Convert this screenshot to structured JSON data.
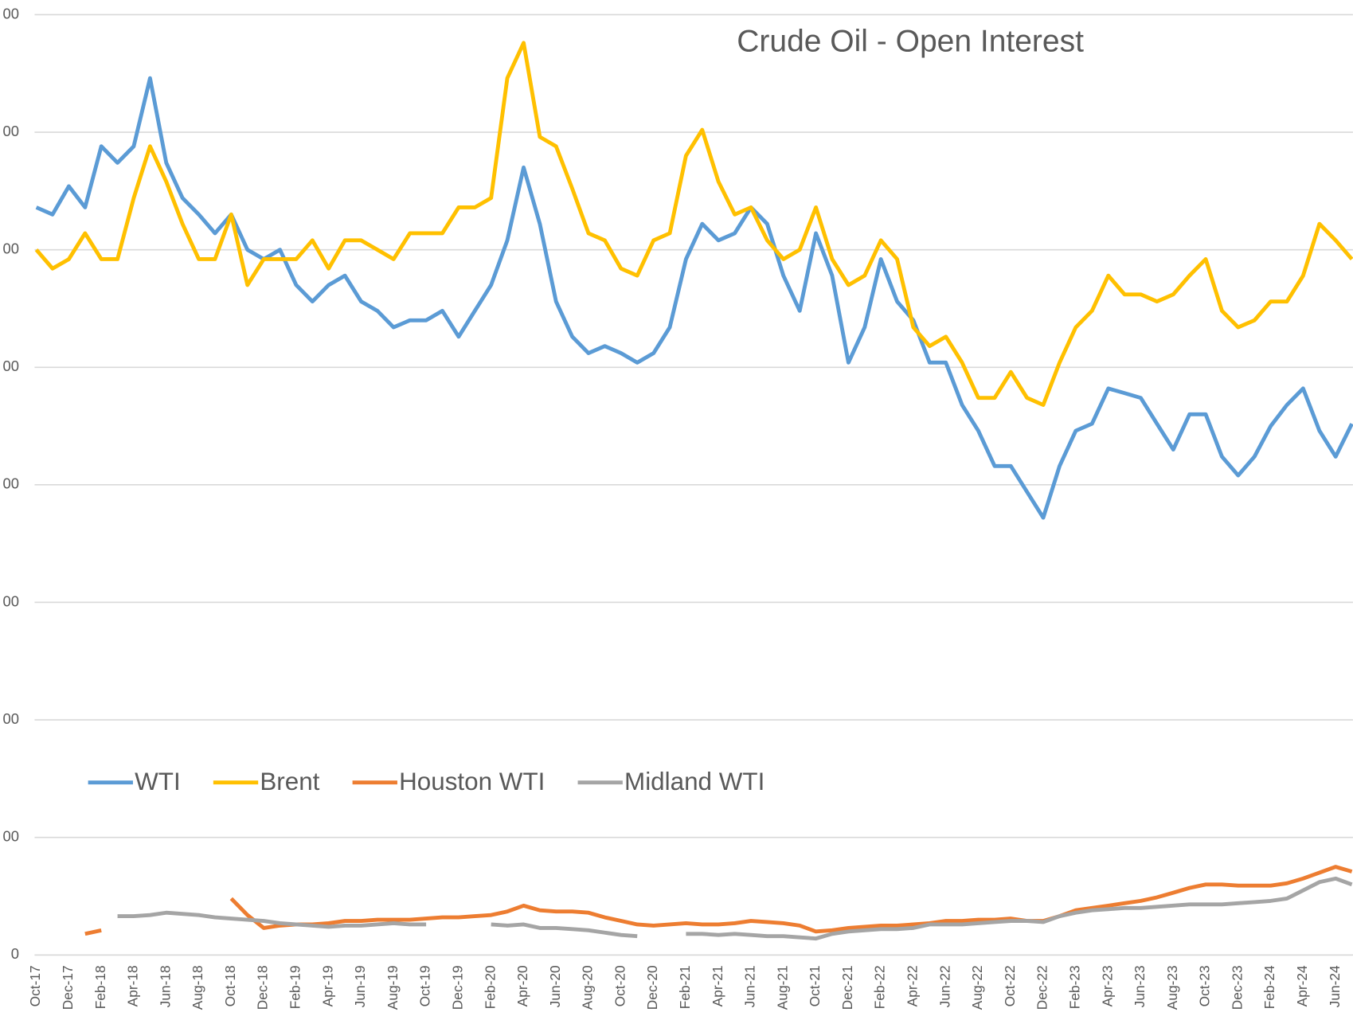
{
  "chart_data": {
    "type": "line",
    "title": "Crude Oil - Open Interest",
    "categories": [
      "Oct-17",
      null,
      "Dec-17",
      null,
      "Feb-18",
      null,
      "Apr-18",
      null,
      "Jun-18",
      null,
      "Aug-18",
      null,
      "Oct-18",
      null,
      "Dec-18",
      null,
      "Feb-19",
      null,
      "Apr-19",
      null,
      "Jun-19",
      null,
      "Aug-19",
      null,
      "Oct-19",
      null,
      "Dec-19",
      null,
      "Feb-20",
      null,
      "Apr-20",
      null,
      "Jun-20",
      null,
      "Aug-20",
      null,
      "Oct-20",
      null,
      "Dec-20",
      null,
      "Feb-21",
      null,
      "Apr-21",
      null,
      "Jun-21",
      null,
      "Aug-21",
      null,
      "Oct-21",
      null,
      "Dec-21",
      null,
      "Feb-22",
      null,
      "Apr-22",
      null,
      "Jun-22",
      null,
      "Aug-22",
      null,
      "Oct-22",
      null,
      "Dec-22",
      null,
      "Feb-23",
      null,
      "Apr-23",
      null,
      "Jun-23",
      null,
      "Aug-23",
      null,
      "Oct-23",
      null,
      "Dec-23",
      null,
      "Feb-24",
      null,
      "Apr-24",
      null,
      "Jun-24",
      null
    ],
    "series": [
      {
        "name": "WTI",
        "color": "#5b9bd5",
        "values": [
          3180000,
          3150000,
          3270000,
          3180000,
          3440000,
          3370000,
          3440000,
          3730000,
          3370000,
          3220000,
          3150000,
          3070000,
          3150000,
          3000000,
          2960000,
          3000000,
          2850000,
          2780000,
          2850000,
          2890000,
          2780000,
          2740000,
          2670000,
          2700000,
          2700000,
          2740000,
          2630000,
          2740000,
          2850000,
          3040000,
          3350000,
          3110000,
          2780000,
          2630000,
          2560000,
          2590000,
          2560000,
          2520000,
          2560000,
          2670000,
          2960000,
          3110000,
          3040000,
          3070000,
          3180000,
          3110000,
          2890000,
          2740000,
          3070000,
          2890000,
          2520000,
          2670000,
          2960000,
          2780000,
          2700000,
          2520000,
          2520000,
          2340000,
          2230000,
          2080000,
          2080000,
          1970000,
          1860000,
          2080000,
          2230000,
          2260000,
          2410000,
          2390000,
          2370000,
          2260000,
          2150000,
          2300000,
          2300000,
          2120000,
          2040000,
          2120000,
          2250000,
          2340000,
          2410000,
          2230000,
          2120000,
          2260000
        ]
      },
      {
        "name": "Brent",
        "color": "#ffc000",
        "values": [
          3000000,
          2920000,
          2960000,
          3070000,
          2960000,
          2960000,
          3220000,
          3440000,
          3290000,
          3110000,
          2960000,
          2960000,
          3150000,
          2850000,
          2960000,
          2960000,
          2960000,
          3040000,
          2920000,
          3040000,
          3040000,
          3000000,
          2960000,
          3070000,
          3070000,
          3070000,
          3180000,
          3180000,
          3220000,
          3730000,
          3880000,
          3480000,
          3440000,
          3260000,
          3070000,
          3040000,
          2920000,
          2890000,
          3040000,
          3070000,
          3400000,
          3510000,
          3290000,
          3150000,
          3180000,
          3040000,
          2960000,
          3000000,
          3180000,
          2960000,
          2850000,
          2890000,
          3040000,
          2960000,
          2670000,
          2590000,
          2630000,
          2520000,
          2370000,
          2370000,
          2480000,
          2370000,
          2340000,
          2520000,
          2670000,
          2740000,
          2890000,
          2810000,
          2810000,
          2780000,
          2810000,
          2890000,
          2960000,
          2740000,
          2670000,
          2700000,
          2780000,
          2780000,
          2890000,
          3110000,
          3040000,
          2960000
        ]
      },
      {
        "name": "Houston WTI",
        "color": "#ed7d31",
        "values": [
          null,
          null,
          null,
          90000,
          105000,
          null,
          null,
          null,
          235000,
          null,
          null,
          null,
          240000,
          170000,
          115000,
          125000,
          130000,
          130000,
          135000,
          145000,
          145000,
          150000,
          150000,
          150000,
          155000,
          160000,
          160000,
          165000,
          170000,
          185000,
          210000,
          190000,
          185000,
          185000,
          180000,
          160000,
          145000,
          130000,
          125000,
          130000,
          135000,
          130000,
          130000,
          135000,
          145000,
          140000,
          135000,
          125000,
          100000,
          105000,
          115000,
          120000,
          125000,
          125000,
          130000,
          135000,
          145000,
          145000,
          150000,
          150000,
          155000,
          145000,
          145000,
          165000,
          190000,
          200000,
          210000,
          220000,
          230000,
          245000,
          265000,
          285000,
          300000,
          300000,
          295000,
          295000,
          295000,
          305000,
          325000,
          350000,
          375000,
          355000
        ]
      },
      {
        "name": "Midland WTI",
        "color": "#a5a5a5",
        "values": [
          null,
          null,
          null,
          null,
          null,
          165000,
          165000,
          170000,
          180000,
          175000,
          170000,
          160000,
          155000,
          150000,
          145000,
          135000,
          130000,
          125000,
          120000,
          125000,
          125000,
          130000,
          135000,
          130000,
          130000,
          null,
          135000,
          null,
          130000,
          125000,
          130000,
          115000,
          115000,
          110000,
          105000,
          95000,
          85000,
          80000,
          null,
          null,
          90000,
          90000,
          85000,
          90000,
          85000,
          80000,
          80000,
          75000,
          70000,
          90000,
          100000,
          105000,
          110000,
          110000,
          115000,
          130000,
          130000,
          130000,
          135000,
          140000,
          145000,
          145000,
          140000,
          165000,
          180000,
          190000,
          195000,
          200000,
          200000,
          205000,
          210000,
          215000,
          215000,
          215000,
          220000,
          225000,
          230000,
          240000,
          275000,
          310000,
          325000,
          300000
        ]
      }
    ],
    "ylim": [
      0,
      4000000
    ],
    "yticks": [
      0,
      {
        "value": 500000,
        "label": "00"
      },
      {
        "value": 1000000,
        "label": "00"
      },
      {
        "value": 1500000,
        "label": "00"
      },
      {
        "value": 2000000,
        "label": "00"
      },
      {
        "value": 2500000,
        "label": "00"
      },
      {
        "value": 3000000,
        "label": "00"
      },
      {
        "value": 3500000,
        "label": "00"
      },
      {
        "value": 4000000,
        "label": "00"
      }
    ],
    "grid": true
  }
}
